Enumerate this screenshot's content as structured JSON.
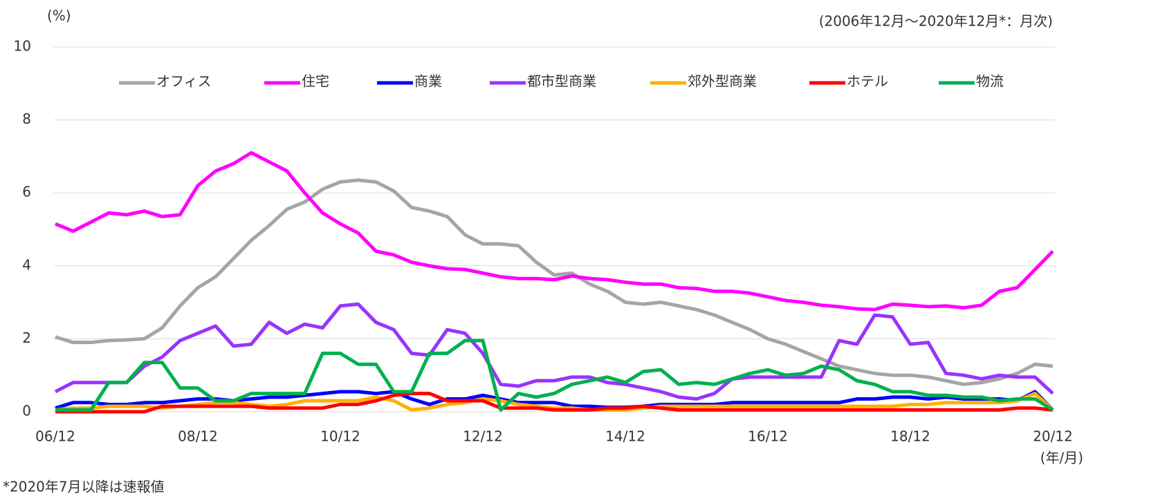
{
  "chart_data": {
    "type": "line",
    "y_unit": "(%)",
    "subtitle": "(2006年12月～2020年12月*：月次)",
    "footnote": "*2020年7月以降は速報値",
    "x_unit": "(年/月)",
    "categories": [
      "06/12",
      null,
      null,
      null,
      null,
      null,
      null,
      null,
      "08/12",
      null,
      null,
      null,
      null,
      null,
      null,
      null,
      "10/12",
      null,
      null,
      null,
      null,
      null,
      null,
      null,
      "12/12",
      null,
      null,
      null,
      null,
      null,
      null,
      null,
      "14/12",
      null,
      null,
      null,
      null,
      null,
      null,
      null,
      "16/12",
      null,
      null,
      null,
      null,
      null,
      null,
      null,
      "18/12",
      null,
      null,
      null,
      null,
      null,
      null,
      null,
      "20/12"
    ],
    "ylim": [
      0,
      10
    ],
    "yticks": [
      0,
      2,
      4,
      6,
      8,
      10
    ],
    "grid": true,
    "legend": "top",
    "series": [
      {
        "name": "オフィス",
        "color": "#a5a5a5",
        "values": [
          2.05,
          1.9,
          1.9,
          1.95,
          1.97,
          2.0,
          2.3,
          2.9,
          3.4,
          3.7,
          4.2,
          4.7,
          5.1,
          5.55,
          5.75,
          6.1,
          6.3,
          6.35,
          6.3,
          6.05,
          5.6,
          5.5,
          5.35,
          4.85,
          4.6,
          4.6,
          4.55,
          4.1,
          3.75,
          3.8,
          3.5,
          3.3,
          3.0,
          2.95,
          3.0,
          2.9,
          2.8,
          2.65,
          2.45,
          2.25,
          2.0,
          1.85,
          1.65,
          1.45,
          1.25,
          1.15,
          1.05,
          1.0,
          1.0,
          0.95,
          0.85,
          0.75,
          0.8,
          0.9,
          1.05,
          1.3,
          1.25
        ]
      },
      {
        "name": "住宅",
        "color": "#ff00ff",
        "values": [
          5.15,
          4.95,
          5.2,
          5.45,
          5.4,
          5.5,
          5.35,
          5.4,
          6.2,
          6.6,
          6.8,
          7.1,
          6.85,
          6.6,
          6.0,
          5.45,
          5.15,
          4.9,
          4.4,
          4.3,
          4.1,
          4.0,
          3.92,
          3.9,
          3.8,
          3.7,
          3.65,
          3.65,
          3.62,
          3.72,
          3.65,
          3.62,
          3.55,
          3.5,
          3.5,
          3.4,
          3.38,
          3.3,
          3.3,
          3.25,
          3.15,
          3.05,
          3.0,
          2.92,
          2.88,
          2.82,
          2.8,
          2.95,
          2.92,
          2.88,
          2.9,
          2.85,
          2.92,
          3.3,
          3.4,
          3.9,
          4.4
        ]
      },
      {
        "name": "商業",
        "color": "#0000ff",
        "values": [
          0.1,
          0.25,
          0.25,
          0.2,
          0.2,
          0.25,
          0.25,
          0.3,
          0.35,
          0.35,
          0.3,
          0.35,
          0.4,
          0.4,
          0.45,
          0.5,
          0.55,
          0.55,
          0.5,
          0.55,
          0.35,
          0.2,
          0.35,
          0.35,
          0.45,
          0.35,
          0.25,
          0.25,
          0.25,
          0.15,
          0.15,
          0.12,
          0.12,
          0.15,
          0.2,
          0.2,
          0.2,
          0.2,
          0.25,
          0.25,
          0.25,
          0.25,
          0.25,
          0.25,
          0.25,
          0.35,
          0.35,
          0.4,
          0.4,
          0.35,
          0.4,
          0.35,
          0.35,
          0.35,
          0.3,
          0.55,
          0.05
        ]
      },
      {
        "name": "都市型商業",
        "color": "#9933ff",
        "values": [
          0.55,
          0.8,
          0.8,
          0.8,
          0.8,
          1.25,
          1.5,
          1.95,
          2.15,
          2.35,
          1.8,
          1.85,
          2.45,
          2.15,
          2.4,
          2.3,
          2.9,
          2.95,
          2.45,
          2.25,
          1.6,
          1.55,
          2.25,
          2.15,
          1.6,
          0.75,
          0.7,
          0.85,
          0.85,
          0.95,
          0.95,
          0.8,
          0.75,
          0.65,
          0.55,
          0.4,
          0.35,
          0.5,
          0.9,
          0.95,
          0.95,
          0.95,
          0.95,
          0.95,
          1.95,
          1.85,
          2.65,
          2.6,
          1.85,
          1.9,
          1.05,
          1.0,
          0.9,
          1.0,
          0.95,
          0.95,
          0.5
        ]
      },
      {
        "name": "郊外型商業",
        "color": "#ffb000",
        "values": [
          0.05,
          0.1,
          0.1,
          0.15,
          0.15,
          0.15,
          0.1,
          0.15,
          0.2,
          0.25,
          0.25,
          0.2,
          0.15,
          0.2,
          0.3,
          0.3,
          0.3,
          0.3,
          0.4,
          0.3,
          0.05,
          0.1,
          0.2,
          0.25,
          0.35,
          0.3,
          0.2,
          0.15,
          0.1,
          0.1,
          0.05,
          0.05,
          0.05,
          0.1,
          0.15,
          0.15,
          0.15,
          0.15,
          0.15,
          0.15,
          0.15,
          0.15,
          0.15,
          0.15,
          0.15,
          0.15,
          0.15,
          0.15,
          0.2,
          0.2,
          0.25,
          0.25,
          0.25,
          0.25,
          0.3,
          0.5,
          0.05
        ]
      },
      {
        "name": "ホテル",
        "color": "#ff0000",
        "values": [
          0,
          0,
          0,
          0,
          0,
          0,
          0.15,
          0.15,
          0.15,
          0.15,
          0.15,
          0.15,
          0.1,
          0.1,
          0.1,
          0.1,
          0.2,
          0.2,
          0.3,
          0.45,
          0.5,
          0.5,
          0.3,
          0.3,
          0.3,
          0.1,
          0.1,
          0.1,
          0.05,
          0.05,
          0.05,
          0.1,
          0.1,
          0.15,
          0.1,
          0.05,
          0.05,
          0.05,
          0.05,
          0.05,
          0.05,
          0.05,
          0.05,
          0.05,
          0.05,
          0.05,
          0.05,
          0.05,
          0.05,
          0.05,
          0.05,
          0.05,
          0.05,
          0.05,
          0.1,
          0.1,
          0.05
        ]
      },
      {
        "name": "物流",
        "color": "#00b050",
        "values": [
          0.05,
          0.05,
          0.05,
          0.8,
          0.8,
          1.35,
          1.35,
          0.65,
          0.65,
          0.3,
          0.3,
          0.5,
          0.5,
          0.5,
          0.5,
          1.6,
          1.6,
          1.3,
          1.3,
          0.55,
          0.55,
          1.6,
          1.6,
          1.95,
          1.95,
          0.05,
          0.5,
          0.4,
          0.5,
          0.75,
          0.85,
          0.95,
          0.8,
          1.1,
          1.15,
          0.75,
          0.8,
          0.75,
          0.9,
          1.05,
          1.15,
          1.0,
          1.05,
          1.25,
          1.15,
          0.85,
          0.75,
          0.55,
          0.55,
          0.45,
          0.45,
          0.4,
          0.4,
          0.3,
          0.35,
          0.35,
          0.05
        ]
      }
    ]
  }
}
